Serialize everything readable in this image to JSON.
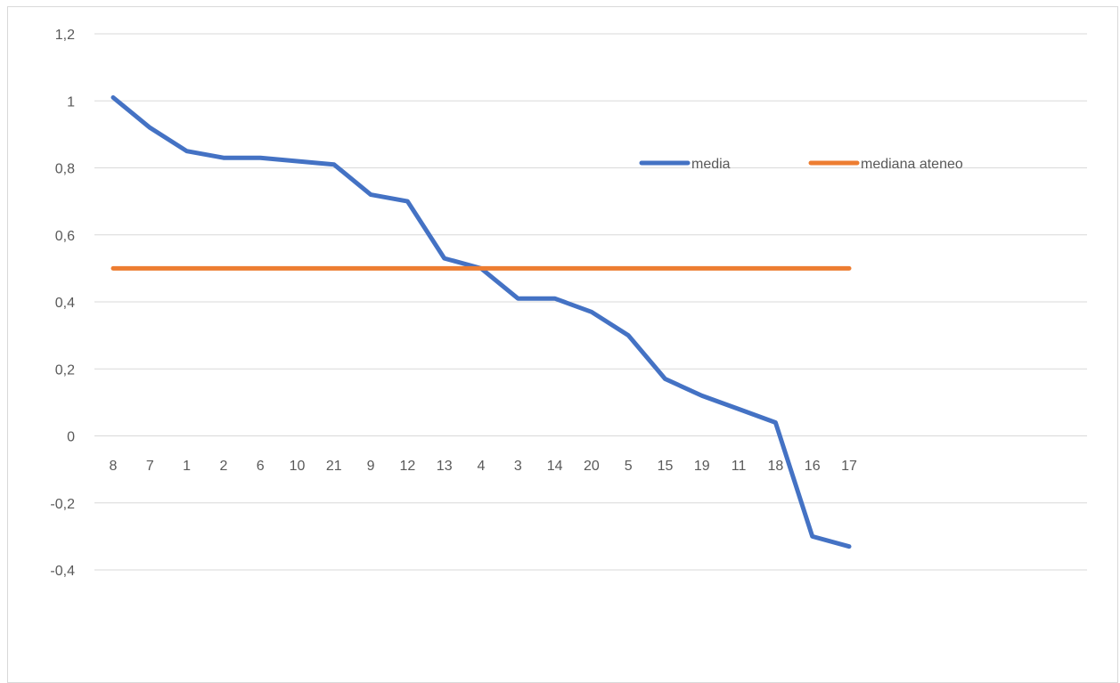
{
  "chart_data": {
    "type": "line",
    "categories": [
      "8",
      "7",
      "1",
      "2",
      "6",
      "10",
      "21",
      "9",
      "12",
      "13",
      "4",
      "3",
      "14",
      "20",
      "5",
      "15",
      "19",
      "11",
      "18",
      "16",
      "17"
    ],
    "series": [
      {
        "name": "media",
        "color": "#4472c4",
        "values": [
          1.01,
          0.92,
          0.85,
          0.83,
          0.83,
          0.82,
          0.81,
          0.72,
          0.7,
          0.53,
          0.5,
          0.41,
          0.41,
          0.37,
          0.3,
          0.17,
          0.12,
          0.08,
          0.04,
          -0.3,
          -0.33
        ]
      },
      {
        "name": "mediana ateneo",
        "color": "#ed7d31",
        "values": [
          0.5,
          0.5,
          0.5,
          0.5,
          0.5,
          0.5,
          0.5,
          0.5,
          0.5,
          0.5,
          0.5,
          0.5,
          0.5,
          0.5,
          0.5,
          0.5,
          0.5,
          0.5,
          0.5,
          0.5,
          0.5
        ]
      }
    ],
    "yticks": [
      "1,2",
      "1",
      "0,8",
      "0,6",
      "0,4",
      "0,2",
      "0",
      "-0,2",
      "-0,4"
    ],
    "ylim": [
      -0.4,
      1.2
    ],
    "grid": true,
    "legend_position": "inside-top-right",
    "title": "",
    "xlabel": "",
    "ylabel": ""
  }
}
